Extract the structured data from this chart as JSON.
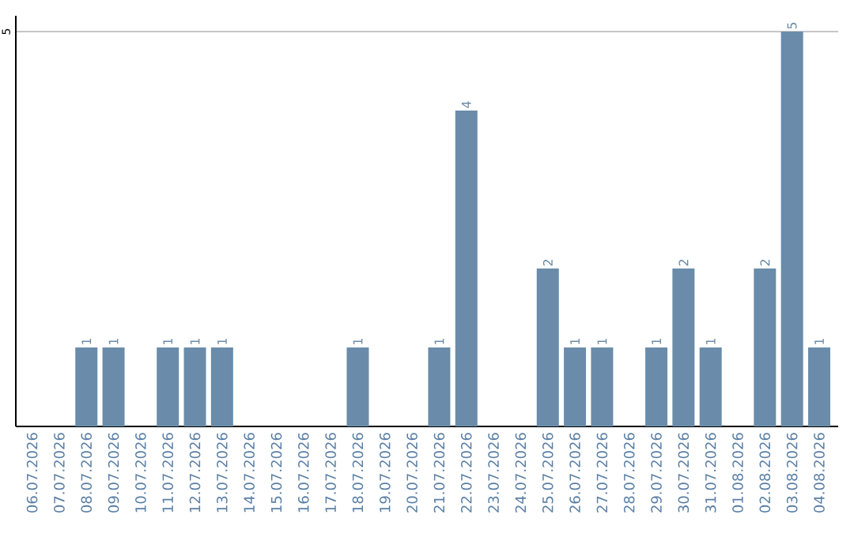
{
  "chart_data": {
    "type": "bar",
    "categories": [
      "06.07.2026",
      "07.07.2026",
      "08.07.2026",
      "09.07.2026",
      "10.07.2026",
      "11.07.2026",
      "12.07.2026",
      "13.07.2026",
      "14.07.2026",
      "15.07.2026",
      "16.07.2026",
      "17.07.2026",
      "18.07.2026",
      "19.07.2026",
      "20.07.2026",
      "21.07.2026",
      "22.07.2026",
      "23.07.2026",
      "24.07.2026",
      "25.07.2026",
      "26.07.2026",
      "27.07.2026",
      "28.07.2026",
      "29.07.2026",
      "30.07.2026",
      "31.07.2026",
      "01.08.2026",
      "02.08.2026",
      "03.08.2026",
      "04.08.2026"
    ],
    "values": [
      0,
      0,
      1,
      1,
      0,
      1,
      1,
      1,
      0,
      0,
      0,
      0,
      1,
      0,
      0,
      1,
      4,
      0,
      0,
      2,
      1,
      1,
      0,
      1,
      2,
      1,
      0,
      2,
      5,
      1
    ],
    "value_labels": [
      null,
      null,
      "1",
      "1",
      null,
      "1",
      "1",
      "1",
      null,
      null,
      null,
      null,
      "1",
      null,
      null,
      "1",
      "4",
      null,
      null,
      "2",
      "1",
      "1",
      null,
      "1",
      "2",
      "1",
      null,
      "2",
      "5",
      "1"
    ],
    "color": "#6a8caa",
    "ylim": [
      0,
      5.2
    ],
    "yticks": [
      5
    ],
    "grid": "y"
  }
}
